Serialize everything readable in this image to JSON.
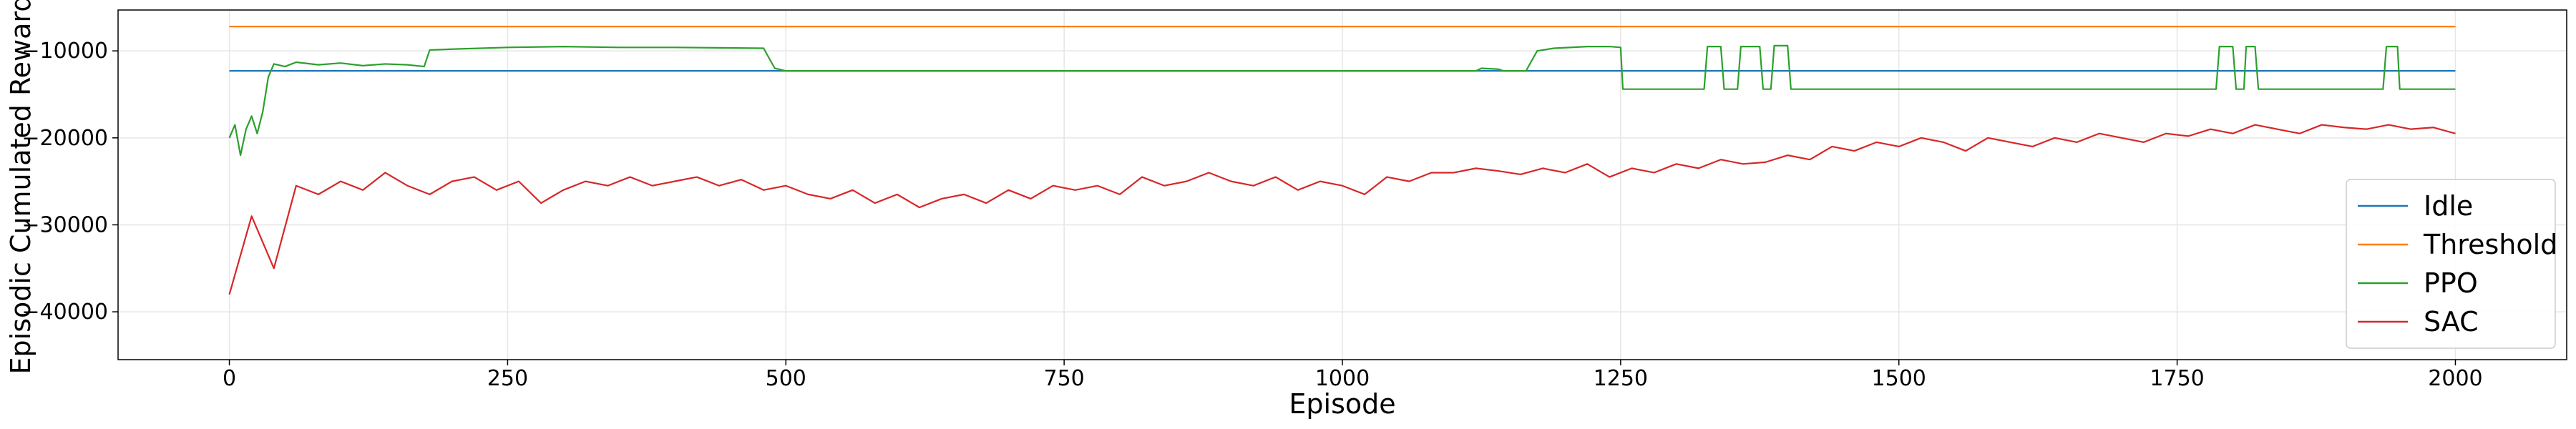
{
  "chart_data": {
    "type": "line",
    "xlabel": "Episode",
    "ylabel": "Episodic Cumulated Reward",
    "xlim": [
      -100,
      2100
    ],
    "ylim": [
      -45500,
      -5300
    ],
    "xticks": [
      0,
      250,
      500,
      750,
      1000,
      1250,
      1500,
      1750,
      2000
    ],
    "yticks": [
      {
        "value": -40000,
        "label": "−40000"
      },
      {
        "value": -30000,
        "label": "−30000"
      },
      {
        "value": -20000,
        "label": "−20000"
      },
      {
        "value": -10000,
        "label": "−10000"
      }
    ],
    "grid": true,
    "legend": "lower right",
    "series": [
      {
        "name": "Idle",
        "color": "#1f77b4",
        "x": [
          0,
          2000
        ],
        "values": [
          -12300,
          -12300
        ]
      },
      {
        "name": "Threshold",
        "color": "#ff7f0e",
        "x": [
          0,
          2000
        ],
        "values": [
          -7200,
          -7200
        ]
      },
      {
        "name": "PPO",
        "color": "#2ca02c",
        "x": [
          0,
          5,
          10,
          15,
          20,
          25,
          30,
          35,
          40,
          50,
          60,
          80,
          100,
          120,
          140,
          160,
          175,
          180,
          200,
          250,
          300,
          350,
          400,
          480,
          490,
          500,
          1120,
          1125,
          1140,
          1145,
          1165,
          1175,
          1190,
          1220,
          1240,
          1250,
          1252,
          1325,
          1328,
          1340,
          1343,
          1355,
          1358,
          1375,
          1378,
          1385,
          1388,
          1400,
          1403,
          1785,
          1788,
          1800,
          1803,
          1810,
          1812,
          1820,
          1823,
          1935,
          1938,
          1948,
          1950,
          2000
        ],
        "values": [
          -20000,
          -18500,
          -22000,
          -19000,
          -17500,
          -19500,
          -17000,
          -13000,
          -11500,
          -11800,
          -11300,
          -11600,
          -11400,
          -11700,
          -11500,
          -11600,
          -11800,
          -9900,
          -9800,
          -9600,
          -9500,
          -9600,
          -9600,
          -9700,
          -12000,
          -12300,
          -12300,
          -12000,
          -12100,
          -12300,
          -12300,
          -10000,
          -9700,
          -9500,
          -9500,
          -9600,
          -14400,
          -14400,
          -9500,
          -9500,
          -14400,
          -14400,
          -9500,
          -9500,
          -14400,
          -14400,
          -9400,
          -9400,
          -14400,
          -14400,
          -9500,
          -9500,
          -14400,
          -14400,
          -9500,
          -9500,
          -14400,
          -14400,
          -9500,
          -9500,
          -14400,
          -14400
        ]
      },
      {
        "name": "SAC",
        "color": "#d62728",
        "x": [
          0,
          20,
          40,
          60,
          80,
          100,
          120,
          140,
          160,
          180,
          200,
          220,
          240,
          260,
          280,
          300,
          320,
          340,
          360,
          380,
          400,
          420,
          440,
          460,
          480,
          500,
          520,
          540,
          560,
          580,
          600,
          620,
          640,
          660,
          680,
          700,
          720,
          740,
          760,
          780,
          800,
          820,
          840,
          860,
          880,
          900,
          920,
          940,
          960,
          980,
          1000,
          1020,
          1040,
          1060,
          1080,
          1100,
          1120,
          1140,
          1160,
          1180,
          1200,
          1220,
          1240,
          1260,
          1280,
          1300,
          1320,
          1340,
          1360,
          1380,
          1400,
          1420,
          1440,
          1460,
          1480,
          1500,
          1520,
          1540,
          1560,
          1580,
          1600,
          1620,
          1640,
          1660,
          1680,
          1700,
          1720,
          1740,
          1760,
          1780,
          1800,
          1820,
          1840,
          1860,
          1880,
          1900,
          1920,
          1940,
          1960,
          1980,
          2000
        ],
        "values": [
          -38000,
          -29000,
          -35000,
          -25500,
          -26500,
          -25000,
          -26000,
          -24000,
          -25500,
          -26500,
          -25000,
          -24500,
          -26000,
          -25000,
          -27500,
          -26000,
          -25000,
          -25500,
          -24500,
          -25500,
          -25000,
          -24500,
          -25500,
          -24800,
          -26000,
          -25500,
          -26500,
          -27000,
          -26000,
          -27500,
          -26500,
          -28000,
          -27000,
          -26500,
          -27500,
          -26000,
          -27000,
          -25500,
          -26000,
          -25500,
          -26500,
          -24500,
          -25500,
          -25000,
          -24000,
          -25000,
          -25500,
          -24500,
          -26000,
          -25000,
          -25500,
          -26500,
          -24500,
          -25000,
          -24000,
          -24000,
          -23500,
          -23800,
          -24200,
          -23500,
          -24000,
          -23000,
          -24500,
          -23500,
          -24000,
          -23000,
          -23500,
          -22500,
          -23000,
          -22800,
          -22000,
          -22500,
          -21000,
          -21500,
          -20500,
          -21000,
          -20000,
          -20500,
          -21500,
          -20000,
          -20500,
          -21000,
          -20000,
          -20500,
          -19500,
          -20000,
          -20500,
          -19500,
          -19800,
          -19000,
          -19500,
          -18500,
          -19000,
          -19500,
          -18500,
          -18800,
          -19000,
          -18500,
          -19000,
          -18800,
          -19500
        ]
      }
    ]
  }
}
